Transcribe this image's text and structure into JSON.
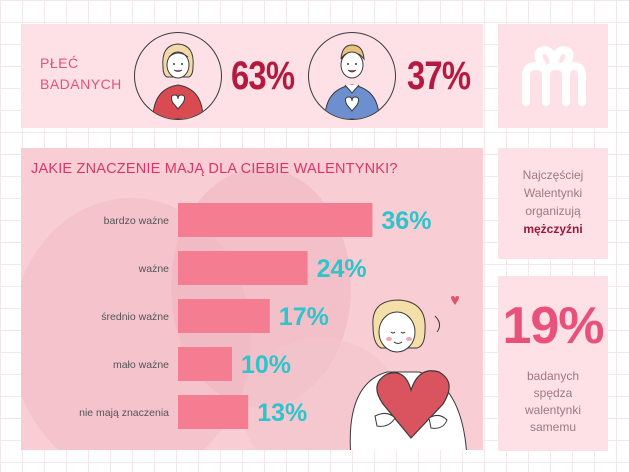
{
  "gender": {
    "title_line1": "PŁEĆ",
    "title_line2": "BADANYCH",
    "women_pct": "63%",
    "men_pct": "37%"
  },
  "note": {
    "line1": "Najczęściej",
    "line2": "Walentynki",
    "line3": "organizują",
    "emph": "mężczyźni"
  },
  "stat": {
    "value": "19%",
    "line1": "badanych",
    "line2": "spędza",
    "line3": "walentynki",
    "line4": "samemu"
  },
  "colors": {
    "bar": "#f57d92",
    "value_label": "#2ec4cc",
    "accent": "#e8517a",
    "dark_accent": "#b5193f"
  },
  "icons": {
    "logo": "mm-gift-logo-icon",
    "woman": "woman-heart-hands-icon",
    "man": "man-heart-hands-icon",
    "girl": "girl-hugging-heart-icon"
  },
  "chart_data": {
    "type": "bar",
    "orientation": "horizontal",
    "title": "JAKIE ZNACZENIE MAJĄ DLA CIEBIE WALENTYNKI?",
    "categories": [
      "bardzo ważne",
      "ważne",
      "średnio ważne",
      "mało ważne",
      "nie mają znaczenia"
    ],
    "values": [
      36,
      24,
      17,
      10,
      13
    ],
    "value_labels": [
      "36%",
      "24%",
      "17%",
      "10%",
      "13%"
    ],
    "unit": "%",
    "xlim": [
      0,
      40
    ],
    "grid": false,
    "legend": "none"
  }
}
